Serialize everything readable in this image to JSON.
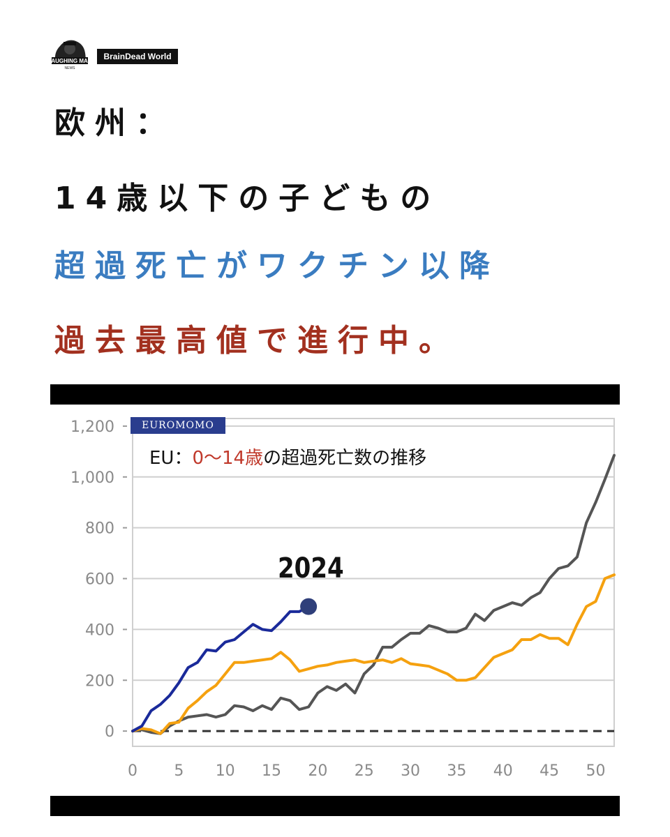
{
  "brand": {
    "tag": "BrainDead World",
    "logo_text": "LAUGHING MAN",
    "logo_subtext": "NEWS"
  },
  "headline": {
    "line1": "欧州：",
    "line2": "14歳以下の子どもの",
    "line3": "超過死亡がワクチン以降",
    "line4": "過去最高値で進行中。"
  },
  "colors": {
    "line3": "#3a7cc0",
    "line4": "#a2301f"
  },
  "chart_data": {
    "type": "line",
    "source_badge": "EUROMOMO",
    "title_prefix": "EU：",
    "title_highlight": "0～14歳",
    "title_suffix": "の超過死亡数の推移",
    "annotation": "2024",
    "xlim": [
      0,
      52
    ],
    "ylim": [
      -60,
      1230
    ],
    "xticks": [
      0,
      5,
      10,
      15,
      20,
      25,
      30,
      35,
      40,
      45,
      50
    ],
    "xtick_labels": [
      "0",
      "5",
      "10",
      "15",
      "20",
      "25",
      "30",
      "35",
      "40",
      "45",
      "50"
    ],
    "yticks": [
      0,
      200,
      400,
      600,
      800,
      1000,
      1200
    ],
    "ytick_labels": [
      "0",
      "200",
      "400",
      "600",
      "800",
      "1,000",
      "1,200"
    ],
    "grid": true,
    "zero_line": "dashed",
    "series": [
      {
        "color": "#555555",
        "x": [
          0,
          1,
          2,
          3,
          4,
          5,
          6,
          7,
          8,
          9,
          10,
          11,
          12,
          13,
          14,
          15,
          16,
          17,
          18,
          19,
          20,
          21,
          22,
          23,
          24,
          25,
          26,
          27,
          28,
          29,
          30,
          31,
          32,
          33,
          34,
          35,
          36,
          37,
          38,
          39,
          40,
          41,
          42,
          43,
          44,
          45,
          46,
          47,
          48,
          49,
          50,
          51,
          52
        ],
        "y": [
          0,
          5,
          -5,
          -10,
          20,
          40,
          55,
          60,
          65,
          55,
          65,
          100,
          95,
          80,
          100,
          85,
          130,
          120,
          85,
          95,
          150,
          175,
          160,
          185,
          150,
          225,
          260,
          330,
          330,
          360,
          385,
          385,
          415,
          405,
          390,
          390,
          405,
          460,
          435,
          475,
          490,
          505,
          495,
          525,
          545,
          600,
          640,
          650,
          685,
          820,
          900,
          990,
          1085
        ]
      },
      {
        "color": "#f5a10f",
        "x": [
          0,
          1,
          2,
          3,
          4,
          5,
          6,
          7,
          8,
          9,
          10,
          11,
          12,
          13,
          14,
          15,
          16,
          17,
          18,
          19,
          20,
          21,
          22,
          23,
          24,
          25,
          26,
          27,
          28,
          29,
          30,
          31,
          32,
          33,
          34,
          35,
          36,
          37,
          38,
          39,
          40,
          41,
          42,
          43,
          44,
          45,
          46,
          47,
          48,
          49,
          50,
          51,
          52
        ],
        "y": [
          0,
          10,
          5,
          -10,
          30,
          35,
          90,
          120,
          155,
          180,
          225,
          270,
          270,
          275,
          280,
          285,
          310,
          280,
          235,
          245,
          255,
          260,
          270,
          275,
          280,
          270,
          275,
          280,
          270,
          285,
          265,
          260,
          255,
          240,
          225,
          200,
          200,
          210,
          250,
          290,
          305,
          320,
          360,
          360,
          380,
          365,
          365,
          340,
          420,
          490,
          510,
          600,
          615
        ]
      },
      {
        "color": "#1a2a9a",
        "x": [
          0,
          1,
          2,
          3,
          4,
          5,
          6,
          7,
          8,
          9,
          10,
          11,
          12,
          13,
          14,
          15,
          16,
          17,
          18,
          19
        ],
        "y": [
          0,
          20,
          80,
          105,
          140,
          190,
          250,
          270,
          320,
          315,
          350,
          360,
          390,
          420,
          400,
          395,
          430,
          470,
          470,
          490
        ]
      }
    ],
    "end_marker": {
      "series": 2,
      "x": 19,
      "y": 490,
      "color": "#2f3f7a"
    }
  }
}
